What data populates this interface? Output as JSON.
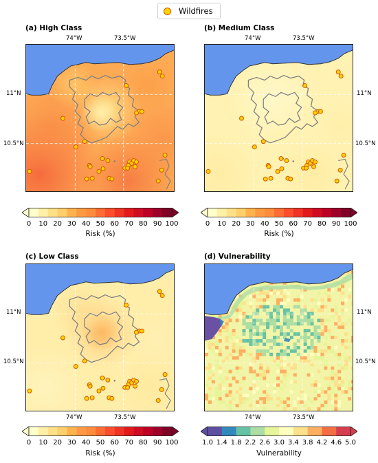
{
  "legend": {
    "label": "Wildfires",
    "marker_fill": "#ffd200",
    "marker_edge": "#d35400"
  },
  "panels": [
    {
      "id": "a",
      "title": "(a) High Class",
      "kind": "risk",
      "level": "high"
    },
    {
      "id": "b",
      "title": "(b) Medium Class",
      "kind": "risk",
      "level": "medium"
    },
    {
      "id": "c",
      "title": "(c) Low Class",
      "kind": "risk",
      "level": "low"
    },
    {
      "id": "d",
      "title": "(d) Vulnerability",
      "kind": "vulnerability"
    }
  ],
  "axes": {
    "lon_ticks": [
      "74°W",
      "73.5°W"
    ],
    "lat_ticks": [
      "11°N",
      "10.5°N"
    ]
  },
  "risk_colorbar": {
    "label": "Risk (%)",
    "ticks": [
      "0",
      "10",
      "20",
      "30",
      "40",
      "50",
      "60",
      "70",
      "80",
      "90",
      "100"
    ],
    "colors": [
      "#ffffcc",
      "#fff0a8",
      "#fee187",
      "#fecf6a",
      "#feb24c",
      "#fd9a43",
      "#fd8d3c",
      "#fc6d33",
      "#fc4e2a",
      "#ef3423",
      "#e31a1c",
      "#cf0c22",
      "#bd0026",
      "#9d0028",
      "#800026"
    ]
  },
  "vuln_colorbar": {
    "label": "Vulnerability",
    "ticks": [
      "1.0",
      "1.4",
      "1.8",
      "2.2",
      "2.6",
      "3.0",
      "3.4",
      "3.8",
      "4.2",
      "4.6",
      "5.0"
    ],
    "colors": [
      "#5e4fa2",
      "#3288bd",
      "#66c2a5",
      "#abdda4",
      "#e6f598",
      "#ffffbf",
      "#fee08b",
      "#fdae61",
      "#f46d43",
      "#d53e4f"
    ]
  },
  "colors": {
    "sea": "#6495ed",
    "contour": "#808080"
  }
}
